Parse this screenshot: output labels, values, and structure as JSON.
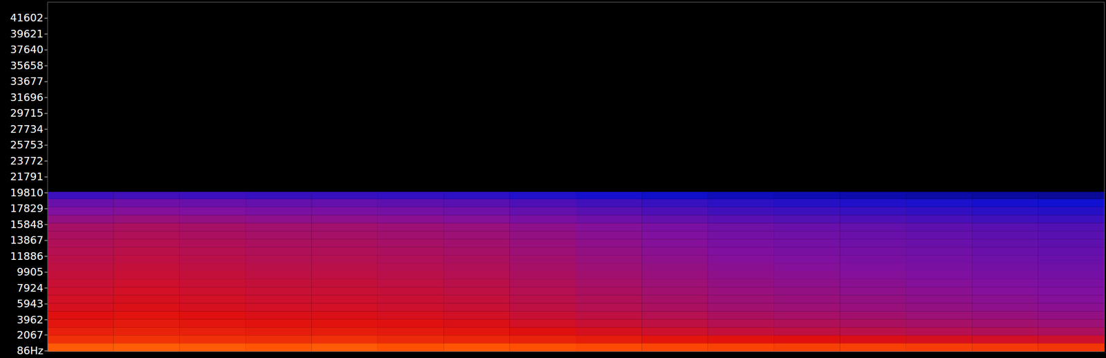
{
  "chart_data": {
    "type": "heatmap",
    "tick_labels": "y",
    "xlim": [
      0,
      16
    ],
    "ylim": [
      0,
      43600
    ],
    "yticks": [
      {
        "value": 86,
        "label": "86Hz"
      },
      2067,
      3962,
      5943,
      7924,
      9905,
      11886,
      13867,
      15848,
      17829,
      19810,
      21791,
      23772,
      25753,
      27734,
      29715,
      31696,
      33677,
      35658,
      37640,
      39621,
      41602
    ],
    "zlim": [
      -120,
      0
    ],
    "time_bins": [
      0,
      1,
      2,
      3,
      4,
      5,
      6,
      7,
      8,
      9,
      10,
      11,
      12,
      13,
      14,
      15,
      16
    ],
    "frequency_bins": [
      0,
      1000,
      2000,
      3000,
      4000,
      5000,
      6000,
      7000,
      8000,
      9000,
      10000,
      11000,
      12000,
      13000,
      14000,
      15000,
      16000,
      17000,
      18000,
      19000,
      19900
    ],
    "cells": [
      [
        -18,
        -17,
        -18,
        -19,
        -18,
        -20,
        -19,
        -20,
        -22,
        -23,
        -24,
        -25,
        -25,
        -26,
        -27,
        -28
      ],
      [
        -30,
        -29,
        -30,
        -31,
        -30,
        -32,
        -33,
        -34,
        -36,
        -38,
        -39,
        -40,
        -41,
        -42,
        -43,
        -44
      ],
      [
        -35,
        -34,
        -35,
        -36,
        -36,
        -37,
        -38,
        -40,
        -42,
        -44,
        -46,
        -47,
        -48,
        -49,
        -50,
        -51
      ],
      [
        -38,
        -37,
        -38,
        -39,
        -39,
        -40,
        -41,
        -43,
        -45,
        -47,
        -49,
        -50,
        -51,
        -52,
        -53,
        -54
      ],
      [
        -40,
        -39,
        -40,
        -41,
        -41,
        -42,
        -43,
        -45,
        -47,
        -49,
        -51,
        -52,
        -53,
        -54,
        -55,
        -56
      ],
      [
        -42,
        -41,
        -42,
        -43,
        -43,
        -44,
        -45,
        -47,
        -49,
        -51,
        -53,
        -54,
        -55,
        -56,
        -57,
        -58
      ],
      [
        -43,
        -42,
        -43,
        -44,
        -44,
        -45,
        -46,
        -48,
        -50,
        -52,
        -54,
        -55,
        -56,
        -57,
        -58,
        -59
      ],
      [
        -44,
        -43,
        -44,
        -45,
        -45,
        -46,
        -47,
        -49,
        -51,
        -53,
        -55,
        -56,
        -57,
        -58,
        -59,
        -60
      ],
      [
        -45,
        -44,
        -45,
        -46,
        -46,
        -47,
        -48,
        -50,
        -52,
        -54,
        -56,
        -57,
        -58,
        -59,
        -60,
        -61
      ],
      [
        -46,
        -45,
        -46,
        -47,
        -47,
        -48,
        -49,
        -51,
        -53,
        -55,
        -57,
        -58,
        -59,
        -60,
        -61,
        -62
      ],
      [
        -47,
        -46,
        -47,
        -48,
        -48,
        -49,
        -50,
        -52,
        -54,
        -56,
        -58,
        -59,
        -60,
        -61,
        -62,
        -63
      ],
      [
        -48,
        -47,
        -48,
        -49,
        -49,
        -50,
        -51,
        -53,
        -55,
        -57,
        -59,
        -60,
        -61,
        -62,
        -63,
        -64
      ],
      [
        -49,
        -48,
        -49,
        -50,
        -50,
        -51,
        -52,
        -54,
        -56,
        -58,
        -60,
        -61,
        -62,
        -63,
        -64,
        -65
      ],
      [
        -50,
        -49,
        -50,
        -51,
        -51,
        -52,
        -53,
        -55,
        -57,
        -59,
        -61,
        -62,
        -63,
        -64,
        -65,
        -66
      ],
      [
        -51,
        -50,
        -51,
        -52,
        -52,
        -53,
        -54,
        -56,
        -58,
        -60,
        -62,
        -63,
        -64,
        -65,
        -66,
        -67
      ],
      [
        -52,
        -51,
        -52,
        -53,
        -53,
        -54,
        -55,
        -57,
        -59,
        -61,
        -63,
        -64,
        -65,
        -66,
        -67,
        -68
      ],
      [
        -56,
        -55,
        -56,
        -57,
        -57,
        -58,
        -59,
        -61,
        -63,
        -65,
        -67,
        -68,
        -69,
        -70,
        -71,
        -72
      ],
      [
        -60,
        -59,
        -60,
        -61,
        -61,
        -62,
        -63,
        -65,
        -67,
        -69,
        -71,
        -72,
        -73,
        -74,
        -75,
        -76
      ],
      [
        -64,
        -63,
        -64,
        -65,
        -65,
        -66,
        -67,
        -69,
        -71,
        -73,
        -75,
        -76,
        -77,
        -78,
        -79,
        -80
      ],
      [
        -72,
        -71,
        -72,
        -73,
        -73,
        -74,
        -75,
        -77,
        -79,
        -81,
        -83,
        -84,
        -85,
        -86,
        -87,
        -88
      ]
    ]
  }
}
